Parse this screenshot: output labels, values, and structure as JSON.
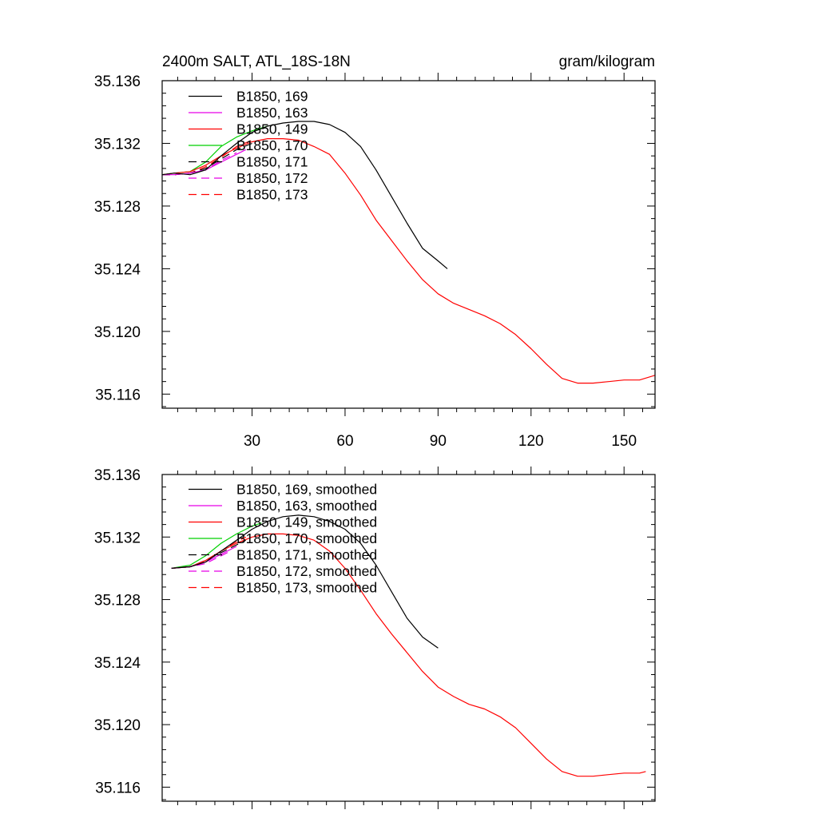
{
  "colors": {
    "black": "#000000",
    "magenta": "#e600e6",
    "red": "#ff0000",
    "green": "#00d000"
  },
  "chart_data": [
    {
      "type": "line",
      "title": "2400m SALT, ATL_18S-18N",
      "units": "gram/kilogram",
      "xlim": [
        1,
        160
      ],
      "ylim": [
        35.1151,
        35.136
      ],
      "x_ticks": [
        30,
        60,
        90,
        120,
        150
      ],
      "y_ticks": [
        35.116,
        35.12,
        35.124,
        35.128,
        35.132,
        35.136
      ],
      "y_tick_labels": [
        "35.116",
        "35.120",
        "35.124",
        "35.128",
        "35.132",
        "35.136"
      ],
      "x_tick_labels": [
        "30",
        "60",
        "90",
        "120",
        "150"
      ],
      "grid": false,
      "legend_position": "top-left",
      "series": [
        {
          "name": "B1850, 169",
          "color": "#000000",
          "dash": "solid",
          "x": [
            1,
            5,
            10,
            15,
            20,
            25,
            30,
            35,
            40,
            45,
            50,
            55,
            60,
            65,
            70,
            75,
            80,
            85,
            90,
            93
          ],
          "y": [
            35.13,
            35.1301,
            35.13,
            35.1303,
            35.1312,
            35.132,
            35.1327,
            35.1331,
            35.1333,
            35.1334,
            35.1334,
            35.1332,
            35.1327,
            35.1318,
            35.1303,
            35.1286,
            35.1269,
            35.1253,
            35.1245,
            35.124
          ]
        },
        {
          "name": "B1850, 163",
          "color": "#e600e6",
          "dash": "solid",
          "x": [
            1,
            5,
            10,
            15,
            20,
            25,
            28
          ],
          "y": [
            35.13,
            35.13,
            35.1301,
            35.1303,
            35.1308,
            35.1313,
            35.1316
          ]
        },
        {
          "name": "B1850, 149",
          "color": "#ff0000",
          "dash": "solid",
          "x": [
            1,
            5,
            10,
            15,
            20,
            25,
            30,
            35,
            40,
            45,
            50,
            55,
            60,
            65,
            70,
            75,
            80,
            85,
            90,
            95,
            100,
            105,
            110,
            115,
            120,
            125,
            130,
            135,
            140,
            145,
            150,
            155,
            160
          ],
          "y": [
            35.13,
            35.1301,
            35.1302,
            35.1306,
            35.1312,
            35.1317,
            35.1321,
            35.1323,
            35.1323,
            35.1322,
            35.1318,
            35.1313,
            35.1301,
            35.1287,
            35.1271,
            35.1258,
            35.1245,
            35.1233,
            35.1224,
            35.1218,
            35.1214,
            35.121,
            35.1205,
            35.1198,
            35.1189,
            35.1179,
            35.117,
            35.1167,
            35.1167,
            35.1168,
            35.1169,
            35.1169,
            35.1172
          ]
        },
        {
          "name": "B1850, 170",
          "color": "#00d000",
          "dash": "solid",
          "x": [
            1,
            5,
            10,
            15,
            20,
            25,
            30,
            35
          ],
          "y": [
            35.13,
            35.1301,
            35.1302,
            35.1308,
            35.1318,
            35.1324,
            35.1328,
            35.1331
          ]
        },
        {
          "name": "B1850, 171",
          "color": "#000000",
          "dash": "dash",
          "x": [
            1,
            5,
            10,
            15,
            20,
            25,
            30
          ],
          "y": [
            35.13,
            35.13,
            35.1301,
            35.1304,
            35.131,
            35.1316,
            35.132
          ]
        },
        {
          "name": "B1850, 172",
          "color": "#e600e6",
          "dash": "dash",
          "x": [
            1,
            5,
            10,
            15,
            20,
            25
          ],
          "y": [
            35.13,
            35.13,
            35.1301,
            35.1303,
            35.1309,
            35.1314
          ]
        },
        {
          "name": "B1850, 173",
          "color": "#ff0000",
          "dash": "dash",
          "x": [
            1,
            5,
            10,
            15,
            20,
            25,
            30
          ],
          "y": [
            35.13,
            35.13,
            35.1301,
            35.1305,
            35.1311,
            35.1318,
            35.1322
          ]
        }
      ]
    },
    {
      "type": "line",
      "title": "",
      "units": "",
      "xlim": [
        1,
        160
      ],
      "ylim": [
        35.1151,
        35.136
      ],
      "x_ticks": [
        30,
        60,
        90,
        120,
        150
      ],
      "y_ticks": [
        35.116,
        35.12,
        35.124,
        35.128,
        35.132,
        35.136
      ],
      "y_tick_labels": [
        "35.116",
        "35.120",
        "35.124",
        "35.128",
        "35.132",
        "35.136"
      ],
      "x_tick_labels": [],
      "grid": false,
      "legend_position": "top-left",
      "series": [
        {
          "name": "B1850, 169, smoothed",
          "color": "#000000",
          "dash": "solid",
          "x": [
            4,
            10,
            15,
            20,
            25,
            30,
            35,
            40,
            45,
            50,
            55,
            60,
            65,
            70,
            75,
            80,
            85,
            90
          ],
          "y": [
            35.13,
            35.1301,
            35.1304,
            35.1311,
            35.1318,
            35.1325,
            35.133,
            35.1333,
            35.1334,
            35.1333,
            35.133,
            35.1325,
            35.1316,
            35.1302,
            35.1285,
            35.1268,
            35.1256,
            35.1249
          ]
        },
        {
          "name": "B1850, 163, smoothed",
          "color": "#e600e6",
          "dash": "solid",
          "x": [
            4,
            10,
            15,
            20,
            25
          ],
          "y": [
            35.13,
            35.1301,
            35.1304,
            35.1309,
            35.1314
          ]
        },
        {
          "name": "B1850, 149, smoothed",
          "color": "#ff0000",
          "dash": "solid",
          "x": [
            4,
            10,
            15,
            20,
            25,
            30,
            35,
            40,
            45,
            50,
            55,
            60,
            65,
            70,
            75,
            80,
            85,
            90,
            95,
            100,
            105,
            110,
            115,
            120,
            125,
            130,
            135,
            140,
            145,
            150,
            155,
            157
          ],
          "y": [
            35.13,
            35.1301,
            35.1305,
            35.1311,
            35.1316,
            35.132,
            35.1322,
            35.1322,
            35.1321,
            35.1318,
            35.1311,
            35.13,
            35.1286,
            35.1271,
            35.1258,
            35.1246,
            35.1234,
            35.1224,
            35.1218,
            35.1213,
            35.121,
            35.1205,
            35.1198,
            35.1188,
            35.1178,
            35.117,
            35.1167,
            35.1167,
            35.1168,
            35.1169,
            35.1169,
            35.117
          ]
        },
        {
          "name": "B1850, 170, smoothed",
          "color": "#00d000",
          "dash": "solid",
          "x": [
            4,
            10,
            15,
            20,
            25,
            30,
            33
          ],
          "y": [
            35.13,
            35.1302,
            35.1308,
            35.1316,
            35.1322,
            35.1327,
            35.1329
          ]
        },
        {
          "name": "B1850, 171, smoothed",
          "color": "#000000",
          "dash": "dash",
          "x": [
            4,
            10,
            15,
            20,
            25,
            28
          ],
          "y": [
            35.13,
            35.1301,
            35.1305,
            35.131,
            35.1315,
            35.1318
          ]
        },
        {
          "name": "B1850, 172, smoothed",
          "color": "#e600e6",
          "dash": "dash",
          "x": [
            4,
            10,
            15,
            20,
            23
          ],
          "y": [
            35.13,
            35.1301,
            35.1303,
            35.1308,
            35.1311
          ]
        },
        {
          "name": "B1850, 173, smoothed",
          "color": "#ff0000",
          "dash": "dash",
          "x": [
            4,
            10,
            15,
            20,
            25,
            28
          ],
          "y": [
            35.13,
            35.1301,
            35.1305,
            35.1311,
            35.1317,
            35.132
          ]
        }
      ]
    }
  ]
}
